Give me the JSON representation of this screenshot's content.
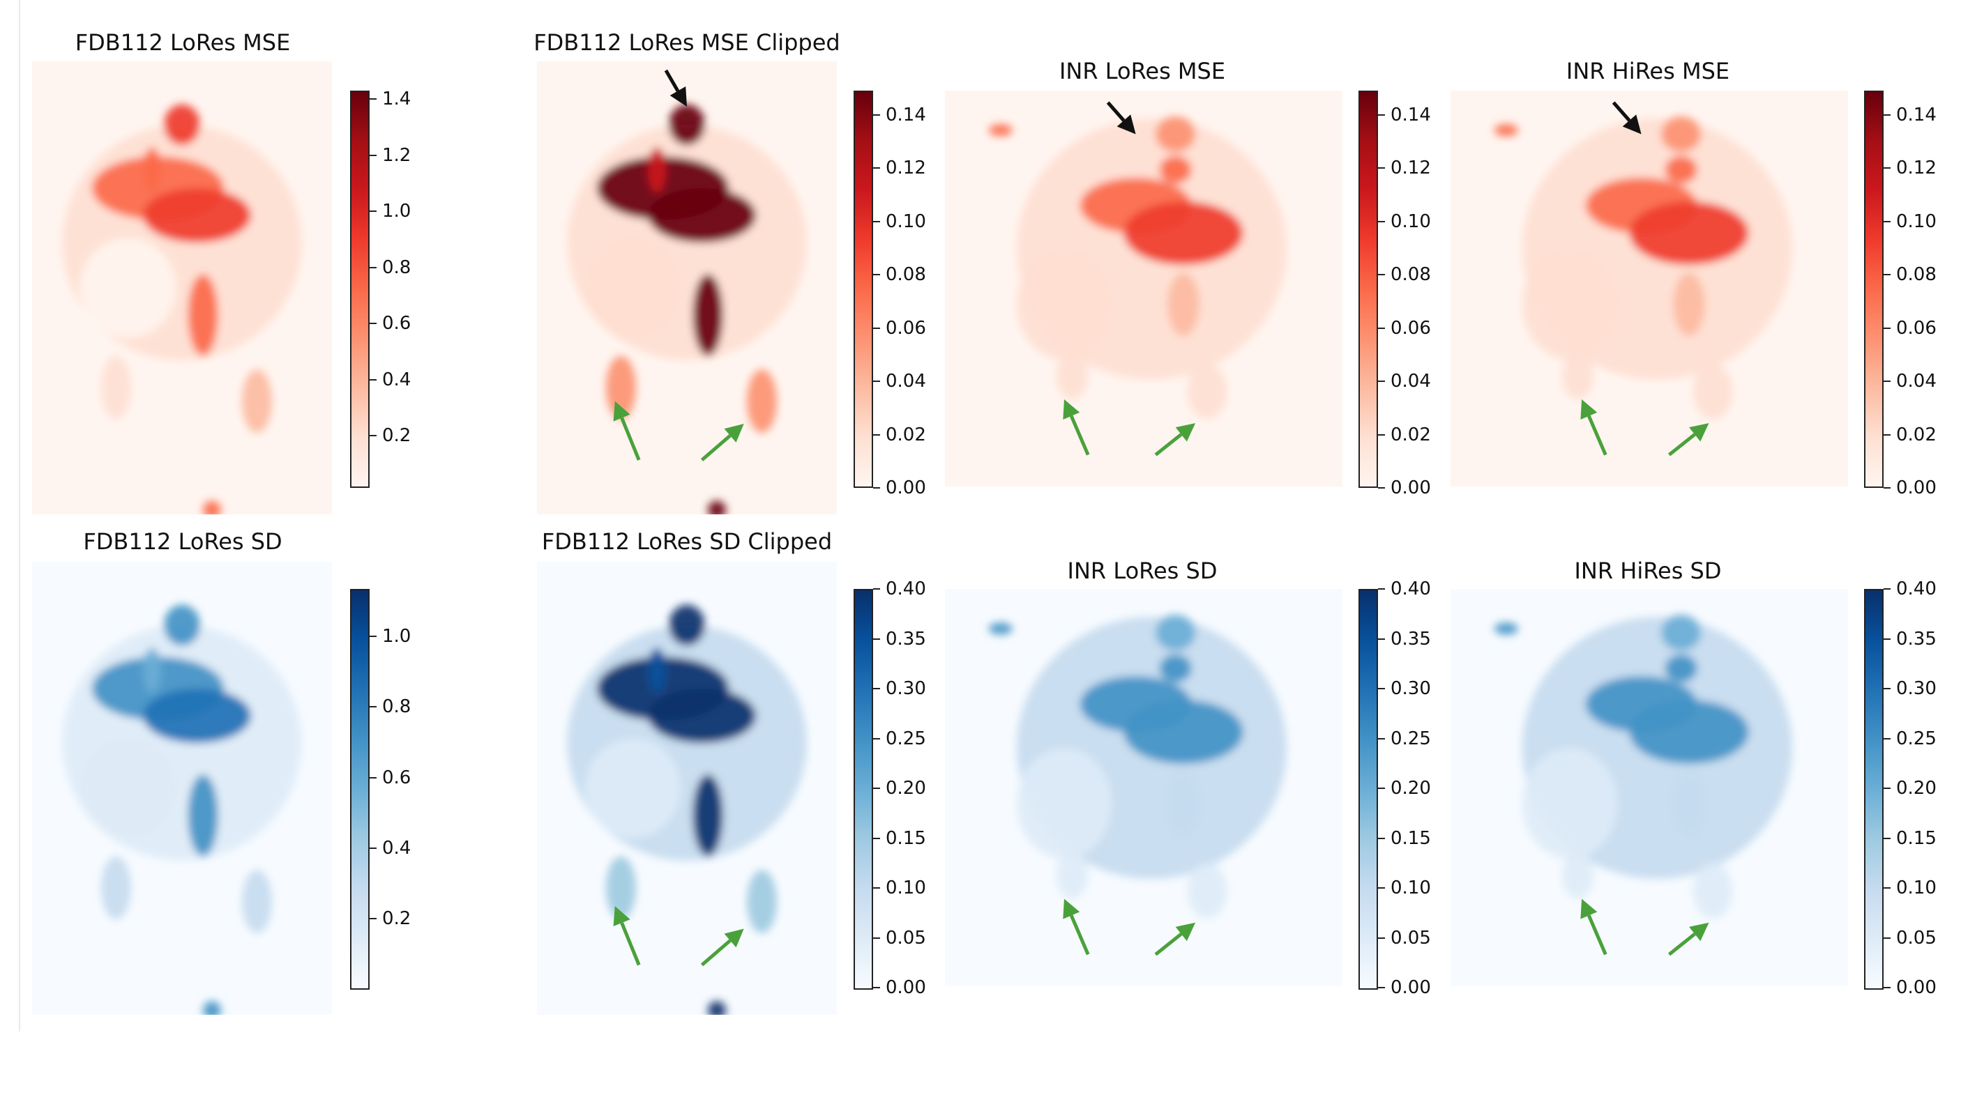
{
  "colors": {
    "reds": [
      "#fff5f0",
      "#fee0d2",
      "#fcbba1",
      "#fc9272",
      "#fb6a4a",
      "#ef3b2c",
      "#cb181d",
      "#a50f15",
      "#67000d"
    ],
    "blues": [
      "#f7fbff",
      "#deebf7",
      "#c6dbef",
      "#9ecae1",
      "#6baed6",
      "#4292c6",
      "#2171b5",
      "#08519c",
      "#08306b"
    ],
    "arrow_green": "#4aa13b",
    "arrow_black": "#111111"
  },
  "panels": [
    {
      "id": "p1",
      "title": "FDB112 LoRes MSE",
      "cmap": "reds",
      "ticks": [
        "0.2",
        "0.4",
        "0.6",
        "0.8",
        "1.0",
        "1.2",
        "1.4"
      ]
    },
    {
      "id": "p2",
      "title": "FDB112 LoRes MSE Clipped",
      "cmap": "reds",
      "ticks": [
        "0.00",
        "0.02",
        "0.04",
        "0.06",
        "0.08",
        "0.10",
        "0.12",
        "0.14"
      ]
    },
    {
      "id": "p3",
      "title": "INR LoRes MSE",
      "cmap": "reds",
      "ticks": [
        "0.00",
        "0.02",
        "0.04",
        "0.06",
        "0.08",
        "0.10",
        "0.12",
        "0.14"
      ]
    },
    {
      "id": "p4",
      "title": "INR HiRes MSE",
      "cmap": "reds",
      "ticks": [
        "0.00",
        "0.02",
        "0.04",
        "0.06",
        "0.08",
        "0.10",
        "0.12",
        "0.14"
      ]
    },
    {
      "id": "p5",
      "title": "FDB112 LoRes SD",
      "cmap": "blues",
      "ticks": [
        "0.2",
        "0.4",
        "0.6",
        "0.8",
        "1.0"
      ]
    },
    {
      "id": "p6",
      "title": "FDB112 LoRes SD Clipped",
      "cmap": "blues",
      "ticks": [
        "0.00",
        "0.05",
        "0.10",
        "0.15",
        "0.20",
        "0.25",
        "0.30",
        "0.35",
        "0.40"
      ]
    },
    {
      "id": "p7",
      "title": "INR LoRes SD",
      "cmap": "blues",
      "ticks": [
        "0.00",
        "0.05",
        "0.10",
        "0.15",
        "0.20",
        "0.25",
        "0.30",
        "0.35",
        "0.40"
      ]
    },
    {
      "id": "p8",
      "title": "INR HiRes SD",
      "cmap": "blues",
      "ticks": [
        "0.00",
        "0.05",
        "0.10",
        "0.15",
        "0.20",
        "0.25",
        "0.30",
        "0.35",
        "0.40"
      ]
    }
  ]
}
